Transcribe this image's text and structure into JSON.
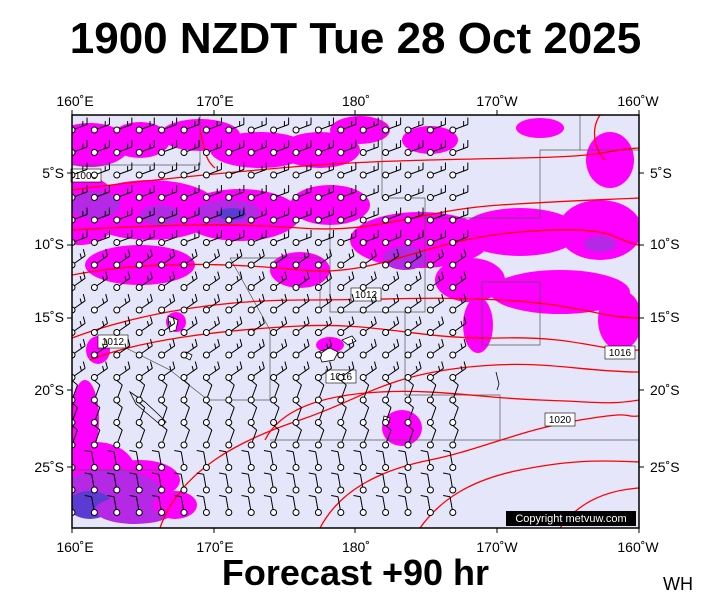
{
  "header": {
    "title": "1900 NZDT Tue 28 Oct 2025"
  },
  "footer": {
    "subtitle": "Forecast +90 hr",
    "initials": "WH"
  },
  "map": {
    "lon_labels": [
      "160˚E",
      "170˚E",
      "180˚",
      "170˚W",
      "160˚W"
    ],
    "lat_labels": [
      "5˚S",
      "10˚S",
      "15˚S",
      "20˚S",
      "25˚S"
    ],
    "isobar_labels": [
      "1008",
      "1012",
      "1012",
      "1016",
      "1016",
      "1020"
    ],
    "copyright": "Copyright metvuw.com",
    "colors": {
      "background": "#e6e6fa",
      "precip_light": "#ff00ff",
      "precip_medium": "#b428e6",
      "precip_heavy": "#5a3cd2",
      "isobar": "#ff0000",
      "frame": "#000000"
    }
  }
}
